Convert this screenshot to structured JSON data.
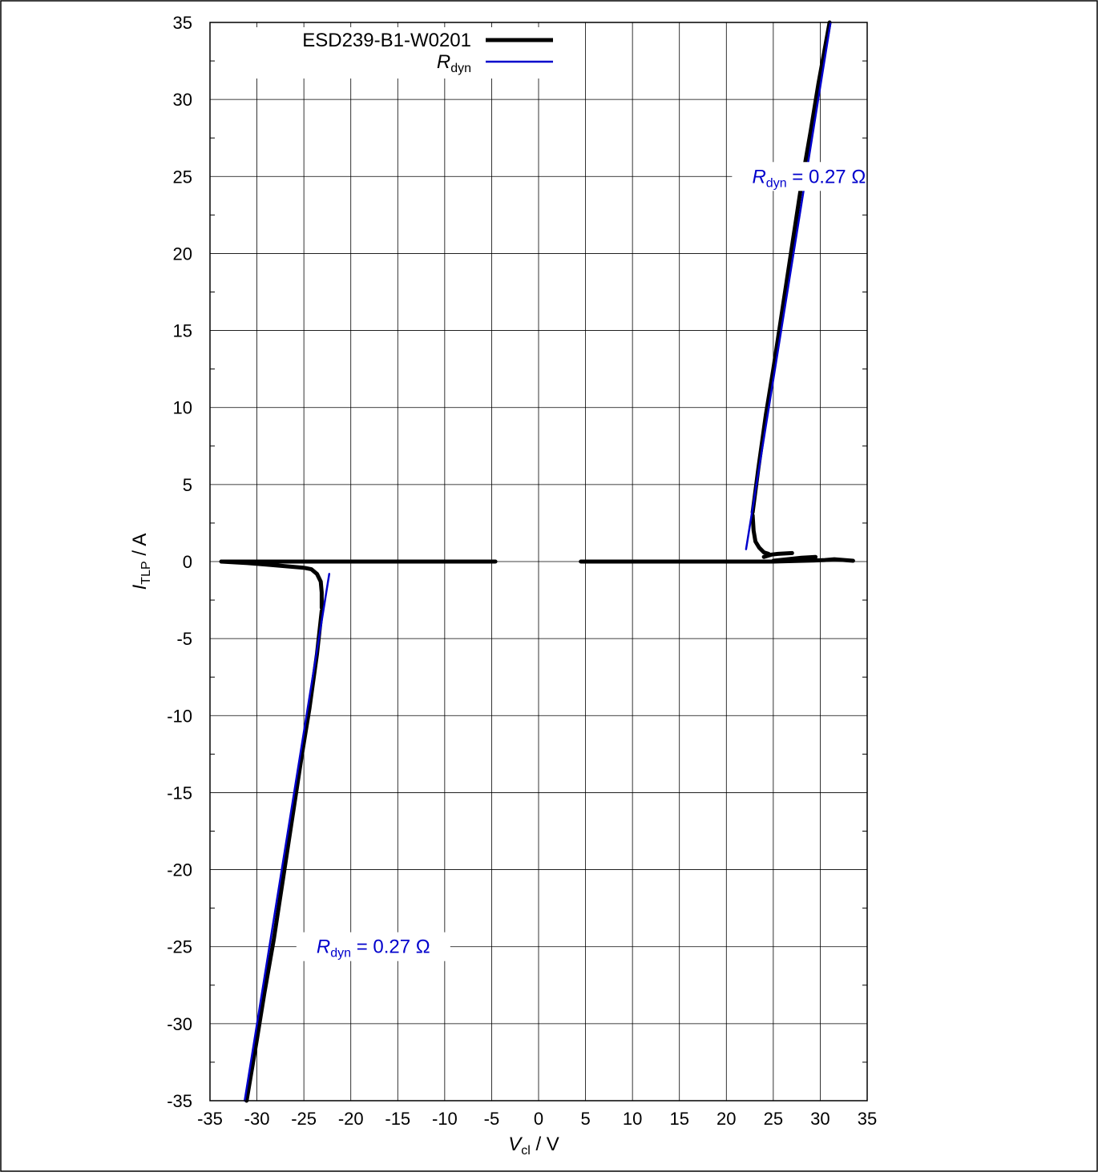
{
  "chart_data": {
    "type": "line",
    "xlabel": {
      "main": "V",
      "sub": "cl",
      "unit": " / V"
    },
    "ylabel": {
      "main": "I",
      "sub": "TLP",
      "unit": " / A"
    },
    "xlim": [
      -35,
      35
    ],
    "ylim": [
      -35,
      35
    ],
    "xticks": [
      -35,
      -30,
      -25,
      -20,
      -15,
      -10,
      -5,
      0,
      5,
      10,
      15,
      20,
      25,
      30,
      35
    ],
    "yticks": [
      -35,
      -30,
      -25,
      -20,
      -15,
      -10,
      -5,
      0,
      5,
      10,
      15,
      20,
      25,
      30,
      35
    ],
    "grid": true,
    "legend_position": "top-left",
    "series": [
      {
        "name": "ESD239-B1-W0201",
        "name_sub": "",
        "color": "#000000",
        "segments": [
          [
            [
              4.5,
              0
            ],
            [
              10,
              0
            ],
            [
              15,
              0
            ],
            [
              20,
              0
            ],
            [
              22,
              0
            ],
            [
              25,
              0
            ],
            [
              27,
              0.03
            ],
            [
              29,
              0.06
            ],
            [
              30.5,
              0.1
            ],
            [
              31.5,
              0.15
            ],
            [
              33.5,
              0.05
            ]
          ],
          [
            [
              25,
              0.05
            ],
            [
              26,
              0.12
            ],
            [
              27,
              0.18
            ],
            [
              28,
              0.25
            ],
            [
              29.5,
              0.3
            ]
          ],
          [
            [
              24,
              0.3
            ],
            [
              24.8,
              0.45
            ],
            [
              25.5,
              0.5
            ],
            [
              27,
              0.55
            ]
          ],
          [
            [
              22.8,
              3.0
            ],
            [
              22.9,
              2.0
            ],
            [
              23.1,
              1.3
            ],
            [
              23.5,
              0.9
            ],
            [
              24,
              0.6
            ],
            [
              24.5,
              0.5
            ]
          ],
          [
            [
              22.8,
              3.2
            ],
            [
              23.4,
              6.0
            ],
            [
              24.2,
              9.5
            ],
            [
              25.0,
              12.5
            ],
            [
              26.0,
              16.5
            ],
            [
              27.0,
              20.5
            ],
            [
              28.0,
              24.5
            ],
            [
              29.0,
              28.0
            ],
            [
              29.8,
              31.0
            ],
            [
              31.0,
              35.0
            ]
          ],
          [
            [
              -33.8,
              0
            ],
            [
              -28,
              0
            ],
            [
              -20,
              0
            ],
            [
              -15,
              0
            ],
            [
              -10,
              0
            ],
            [
              -5,
              0
            ],
            [
              -4.6,
              0
            ]
          ],
          [
            [
              -33.8,
              0
            ],
            [
              -31,
              -0.1
            ],
            [
              -29,
              -0.2
            ],
            [
              -27,
              -0.3
            ],
            [
              -25,
              -0.4
            ],
            [
              -24.2,
              -0.5
            ],
            [
              -23.6,
              -0.8
            ],
            [
              -23.2,
              -1.3
            ],
            [
              -23.1,
              -2.0
            ],
            [
              -23.1,
              -3.0
            ]
          ],
          [
            [
              -23.1,
              -3.2
            ],
            [
              -23.6,
              -6.0
            ],
            [
              -24.4,
              -9.5
            ],
            [
              -25.2,
              -12.5
            ],
            [
              -26.2,
              -16.5
            ],
            [
              -27.2,
              -20.5
            ],
            [
              -28.2,
              -24.5
            ],
            [
              -29.2,
              -28.0
            ],
            [
              -30.0,
              -31.0
            ],
            [
              -31.1,
              -35.0
            ]
          ]
        ]
      },
      {
        "name": "R",
        "name_sub": "dyn",
        "color": "#0000cc",
        "segments": [
          [
            [
              22.1,
              0.8
            ],
            [
              31.1,
              35.0
            ]
          ],
          [
            [
              -22.3,
              -0.8
            ],
            [
              -31.3,
              -35.0
            ]
          ]
        ]
      }
    ],
    "annotations": [
      {
        "main": "R",
        "sub": "dyn",
        "rest": " = 0.27 Ω",
        "color": "#0000cc",
        "x": 28.8,
        "y": 25
      },
      {
        "main": "R",
        "sub": "dyn",
        "rest": " = 0.27 Ω",
        "color": "#0000cc",
        "x": -17.6,
        "y": -25
      }
    ]
  }
}
